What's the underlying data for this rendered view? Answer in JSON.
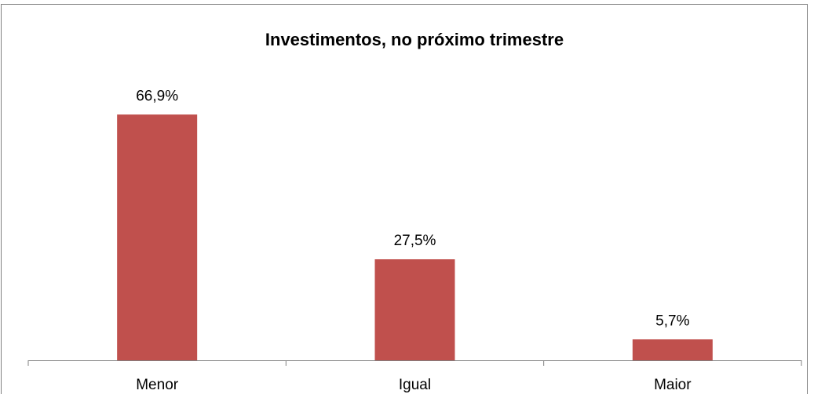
{
  "chart_data": {
    "type": "bar",
    "title": "Investimentos, no próximo trimestre",
    "categories": [
      "Menor",
      "Igual",
      "Maior"
    ],
    "values": [
      66.9,
      27.5,
      5.7
    ],
    "value_labels": [
      "66,9%",
      "27,5%",
      "5,7%"
    ],
    "color": "#c0504d"
  }
}
